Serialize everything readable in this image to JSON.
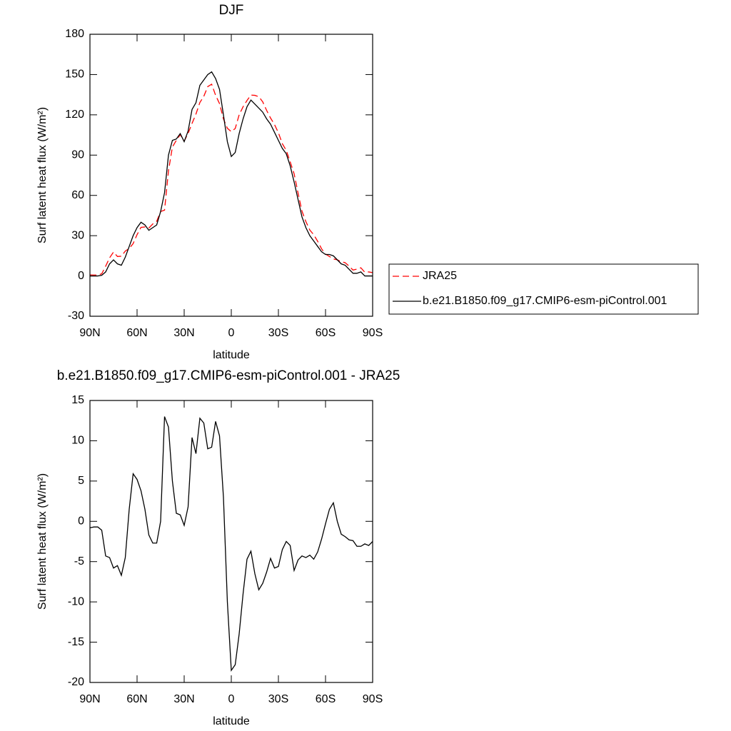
{
  "chart_data": [
    {
      "type": "line",
      "title": "DJF",
      "xlabel": "latitude",
      "ylabel": "Surf latent heat flux (W/m²)",
      "x": [
        90,
        87.5,
        85,
        82.5,
        80,
        77.5,
        75,
        72.5,
        70,
        67.5,
        65,
        62.5,
        60,
        57.5,
        55,
        52.5,
        50,
        47.5,
        45,
        42.5,
        40,
        37.5,
        35,
        32.5,
        30,
        27.5,
        25,
        22.5,
        20,
        17.5,
        15,
        12.5,
        10,
        7.5,
        5,
        2.5,
        0,
        -2.5,
        -5,
        -7.5,
        -10,
        -12.5,
        -15,
        -17.5,
        -20,
        -22.5,
        -25,
        -27.5,
        -30,
        -32.5,
        -35,
        -37.5,
        -40,
        -42.5,
        -45,
        -47.5,
        -50,
        -52.5,
        -55,
        -57.5,
        -60,
        -62.5,
        -65,
        -67.5,
        -70,
        -72.5,
        -75,
        -77.5,
        -80,
        -82.5,
        -85,
        -87.5,
        -90
      ],
      "series": [
        {
          "name": "JRA25",
          "color": "#ff0000",
          "dashed": true,
          "values": [
            0.8,
            0.7,
            0.7,
            1.6,
            7.3,
            13.5,
            17.8,
            14.5,
            14.7,
            18.5,
            20.5,
            24.1,
            30.8,
            36.2,
            36.5,
            35.7,
            38.7,
            40.7,
            48,
            49,
            78.3,
            96,
            101,
            105.2,
            100.5,
            106.2,
            113.6,
            120.6,
            129.2,
            133.8,
            141,
            142.8,
            134.6,
            128.4,
            117,
            110,
            107.5,
            109.8,
            120,
            126,
            130.7,
            134.7,
            134.5,
            133.5,
            129.7,
            123.3,
            117.6,
            112.8,
            106.6,
            98.5,
            93.5,
            85,
            76.1,
            61.8,
            48.3,
            40.5,
            34.2,
            30.7,
            25.8,
            20.2,
            16.3,
            14.5,
            12.7,
            12,
            10.6,
            9.9,
            7.3,
            4.4,
            5.1,
            6.1,
            2.8,
            3,
            2.5
          ]
        },
        {
          "name": "b.e21.B1850.f09_g17.CMIP6-esm-piControl.001",
          "color": "#000000",
          "dashed": false,
          "values": [
            0,
            0,
            0,
            0.5,
            3,
            9,
            12,
            9,
            8,
            14,
            22,
            30,
            36,
            40,
            38,
            34,
            36,
            38,
            48,
            62,
            90,
            101,
            102,
            106,
            100,
            108,
            124,
            129,
            142,
            146,
            150,
            152,
            147,
            139,
            120,
            100,
            89,
            92,
            106,
            117,
            126,
            131,
            128,
            125,
            122,
            117,
            113,
            107,
            101,
            95,
            91,
            82,
            70,
            57,
            44,
            36,
            30,
            26,
            22,
            18,
            16,
            16,
            15,
            12,
            9,
            8,
            5,
            2,
            2,
            3,
            0,
            0,
            0
          ]
        }
      ],
      "xlim": [
        90,
        -90
      ],
      "ylim": [
        -30,
        180
      ],
      "xticks": [
        {
          "value": 90,
          "label": "90N"
        },
        {
          "value": 60,
          "label": "60N"
        },
        {
          "value": 30,
          "label": "30N"
        },
        0,
        {
          "value": -30,
          "label": "30S"
        },
        {
          "value": -60,
          "label": "60S"
        },
        {
          "value": -90,
          "label": "90S"
        }
      ],
      "yticks": [
        -30,
        0,
        30,
        60,
        90,
        120,
        150,
        180
      ],
      "legend": "right"
    },
    {
      "type": "line",
      "title": "b.e21.B1850.f09_g17.CMIP6-esm-piControl.001 - JRA25",
      "xlabel": "latitude",
      "ylabel": "Surf latent heat flux (W/m²)",
      "x": [
        90,
        87.5,
        85,
        82.5,
        80,
        77.5,
        75,
        72.5,
        70,
        67.5,
        65,
        62.5,
        60,
        57.5,
        55,
        52.5,
        50,
        47.5,
        45,
        42.5,
        40,
        37.5,
        35,
        32.5,
        30,
        27.5,
        25,
        22.5,
        20,
        17.5,
        15,
        12.5,
        10,
        7.5,
        5,
        2.5,
        0,
        -2.5,
        -5,
        -7.5,
        -10,
        -12.5,
        -15,
        -17.5,
        -20,
        -22.5,
        -25,
        -27.5,
        -30,
        -32.5,
        -35,
        -37.5,
        -40,
        -42.5,
        -45,
        -47.5,
        -50,
        -52.5,
        -55,
        -57.5,
        -60,
        -62.5,
        -65,
        -67.5,
        -70,
        -72.5,
        -75,
        -77.5,
        -80,
        -82.5,
        -85,
        -87.5,
        -90
      ],
      "series": [
        {
          "color": "#000000",
          "dashed": false,
          "values": [
            -0.8,
            -0.7,
            -0.7,
            -1.1,
            -4.3,
            -4.5,
            -5.8,
            -5.5,
            -6.7,
            -4.5,
            1.5,
            5.9,
            5.2,
            3.8,
            1.5,
            -1.7,
            -2.7,
            -2.7,
            0,
            13,
            11.7,
            5,
            1,
            0.8,
            -0.5,
            1.8,
            10.4,
            8.4,
            12.8,
            12.2,
            9,
            9.2,
            12.4,
            10.6,
            3,
            -10,
            -18.5,
            -17.8,
            -14,
            -9,
            -4.7,
            -3.7,
            -6.5,
            -8.5,
            -7.7,
            -6.3,
            -4.6,
            -5.8,
            -5.6,
            -3.5,
            -2.5,
            -3,
            -6.1,
            -4.8,
            -4.3,
            -4.5,
            -4.2,
            -4.7,
            -3.8,
            -2.2,
            -0.3,
            1.5,
            2.3,
            0,
            -1.6,
            -1.9,
            -2.3,
            -2.4,
            -3.1,
            -3.1,
            -2.8,
            -3,
            -2.5
          ]
        }
      ],
      "xlim": [
        90,
        -90
      ],
      "ylim": [
        -20,
        15
      ],
      "xticks": [
        {
          "value": 90,
          "label": "90N"
        },
        {
          "value": 60,
          "label": "60N"
        },
        {
          "value": 30,
          "label": "30N"
        },
        0,
        {
          "value": -30,
          "label": "30S"
        },
        {
          "value": -60,
          "label": "60S"
        },
        {
          "value": -90,
          "label": "90S"
        }
      ],
      "yticks": [
        -20,
        -15,
        -10,
        -5,
        0,
        5,
        10,
        15
      ]
    }
  ]
}
